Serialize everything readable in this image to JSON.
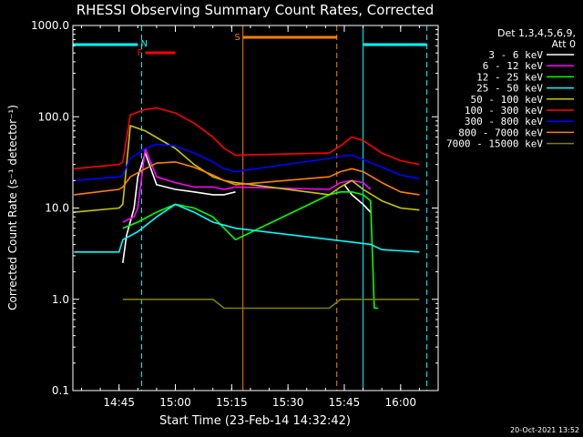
{
  "chart_data": {
    "type": "line",
    "title": "RHESSI Observing Summary Count Rates, Corrected",
    "xlabel": "Start Time (23-Feb-14 14:32:42)",
    "ylabel": "Corrected Count Rate (s⁻¹ detector⁻¹)",
    "y_scale": "log",
    "ylim": [
      0.1,
      1000
    ],
    "xlim": [
      "14:32:42",
      "16:10:00"
    ],
    "x_ticks": [
      "14:45",
      "15:00",
      "15:15",
      "15:30",
      "15:45",
      "16:00"
    ],
    "y_ticks": [
      "0.1",
      "1.0",
      "10.0",
      "100.0",
      "1000.0"
    ],
    "legend_header": [
      "Det 1,3,4,5,6,9,",
      "Att 0"
    ],
    "legend_position": "top-right",
    "footer_date": "20-Oct-2021 13:52",
    "series": [
      {
        "name": "3 - 6 keV",
        "color": "#ffffff",
        "x": [
          "14:33",
          "14:46",
          "14:47",
          "14:49",
          "14:50",
          "14:52",
          "14:55",
          "15:00",
          "15:05",
          "15:10",
          "15:13",
          "15:16",
          "15:41",
          "15:45",
          "15:47",
          "15:50",
          "15:52",
          "15:53"
        ],
        "values": [
          null,
          2.5,
          5,
          10,
          22,
          40,
          18,
          16,
          15,
          14,
          14,
          15,
          null,
          18,
          14,
          11,
          9,
          null
        ]
      },
      {
        "name": "6 - 12 keV",
        "color": "#ff00ff",
        "x": [
          "14:46",
          "14:49",
          "14:50",
          "14:52",
          "14:55",
          "15:00",
          "15:05",
          "15:10",
          "15:13",
          "15:16",
          "15:41",
          "15:44",
          "15:47",
          "15:50",
          "15:52"
        ],
        "values": [
          7,
          8,
          10,
          45,
          22,
          19,
          17,
          17,
          16,
          17,
          16,
          19,
          20,
          19,
          16
        ]
      },
      {
        "name": "12 - 25 keV",
        "color": "#00ff00",
        "x": [
          "14:46",
          "14:50",
          "14:55",
          "15:00",
          "15:05",
          "15:10",
          "15:13",
          "15:16",
          "15:41",
          "15:44",
          "15:47",
          "15:50",
          "15:52",
          "15:53",
          "15:54"
        ],
        "values": [
          6,
          7,
          9,
          11,
          10,
          8,
          6,
          4.5,
          14,
          15,
          15,
          14,
          12,
          0.8,
          0.8
        ]
      },
      {
        "name": "25 - 50 keV",
        "color": "#00ffff",
        "x": [
          "14:33",
          "14:45",
          "14:46",
          "14:50",
          "14:55",
          "15:00",
          "15:05",
          "15:10",
          "15:13",
          "15:16",
          "15:52",
          "15:55",
          "16:00",
          "16:05"
        ],
        "values": [
          3.3,
          3.3,
          4.5,
          5.5,
          8,
          11,
          9,
          7,
          6.5,
          6,
          4,
          3.5,
          3.4,
          3.3
        ]
      },
      {
        "name": "50 - 100 keV",
        "color": "#c8c800",
        "x": [
          "14:33",
          "14:45",
          "14:46",
          "14:48",
          "14:52",
          "15:00",
          "15:05",
          "15:10",
          "15:13",
          "15:16",
          "15:41",
          "15:44",
          "15:47",
          "15:50",
          "15:55",
          "16:00",
          "16:05"
        ],
        "values": [
          9,
          10,
          11,
          80,
          70,
          45,
          30,
          22,
          20,
          19,
          14,
          17,
          20,
          16,
          12,
          10,
          9.5
        ]
      },
      {
        "name": "100 - 300 keV",
        "color": "#ff0000",
        "x": [
          "14:33",
          "14:45",
          "14:46",
          "14:48",
          "14:52",
          "14:55",
          "15:00",
          "15:05",
          "15:10",
          "15:13",
          "15:16",
          "15:41",
          "15:44",
          "15:47",
          "15:50",
          "15:55",
          "16:00",
          "16:05"
        ],
        "values": [
          27,
          30,
          32,
          105,
          120,
          125,
          110,
          85,
          60,
          45,
          38,
          40,
          48,
          60,
          55,
          40,
          33,
          30
        ]
      },
      {
        "name": "300 - 800 keV",
        "color": "#0000ff",
        "x": [
          "14:33",
          "14:45",
          "14:46",
          "14:48",
          "14:52",
          "14:55",
          "15:00",
          "15:05",
          "15:10",
          "15:13",
          "15:16",
          "15:41",
          "15:44",
          "15:47",
          "15:50",
          "15:55",
          "16:00",
          "16:05"
        ],
        "values": [
          20,
          22,
          23,
          35,
          45,
          50,
          48,
          40,
          32,
          27,
          25,
          35,
          37,
          38,
          34,
          28,
          23,
          21
        ]
      },
      {
        "name": "800 - 7000 keV",
        "color": "#ff8000",
        "x": [
          "14:33",
          "14:45",
          "14:46",
          "14:48",
          "14:52",
          "14:55",
          "15:00",
          "15:05",
          "15:10",
          "15:13",
          "15:16",
          "15:41",
          "15:44",
          "15:47",
          "15:50",
          "15:55",
          "16:00",
          "16:05"
        ],
        "values": [
          14,
          16,
          17,
          22,
          27,
          31,
          32,
          28,
          23,
          20,
          18,
          22,
          25,
          27,
          25,
          19,
          15,
          14
        ]
      },
      {
        "name": "7000 - 15000 keV",
        "color": "#808000",
        "x": [
          "14:46",
          "14:50",
          "15:00",
          "15:10",
          "15:13",
          "15:41",
          "15:44",
          "15:50",
          "15:55",
          "16:00",
          "16:05"
        ],
        "values": [
          1.0,
          1.0,
          1.0,
          1.0,
          0.8,
          0.8,
          1.0,
          1.0,
          1.0,
          1.0,
          1.0
        ]
      }
    ],
    "flags": [
      {
        "label": "N",
        "color": "#00ffff",
        "row": "top",
        "start": "14:50",
        "end": "14:50"
      },
      {
        "label": "F",
        "color": "#ff0000",
        "row": "mid",
        "start": "14:52",
        "end": "15:00"
      },
      {
        "label": "S",
        "color": "#ff8000",
        "row": "top",
        "start": "15:18",
        "end": "15:43"
      }
    ],
    "vertical_markers": [
      {
        "time": "14:32:42",
        "color": "#00ffff",
        "style": "solid"
      },
      {
        "time": "14:51",
        "color": "#00ffff",
        "style": "dashed"
      },
      {
        "time": "15:18",
        "color": "#ff8000",
        "style": "solid"
      },
      {
        "time": "15:43",
        "color": "#ff8000",
        "style": "dashed"
      },
      {
        "time": "15:50",
        "color": "#00ffff",
        "style": "solid"
      },
      {
        "time": "16:07",
        "color": "#00ffff",
        "style": "dashed"
      }
    ],
    "cyan_bars": [
      {
        "start": "14:32:42",
        "end": "14:50"
      },
      {
        "start": "15:50",
        "end": "16:07"
      }
    ]
  }
}
